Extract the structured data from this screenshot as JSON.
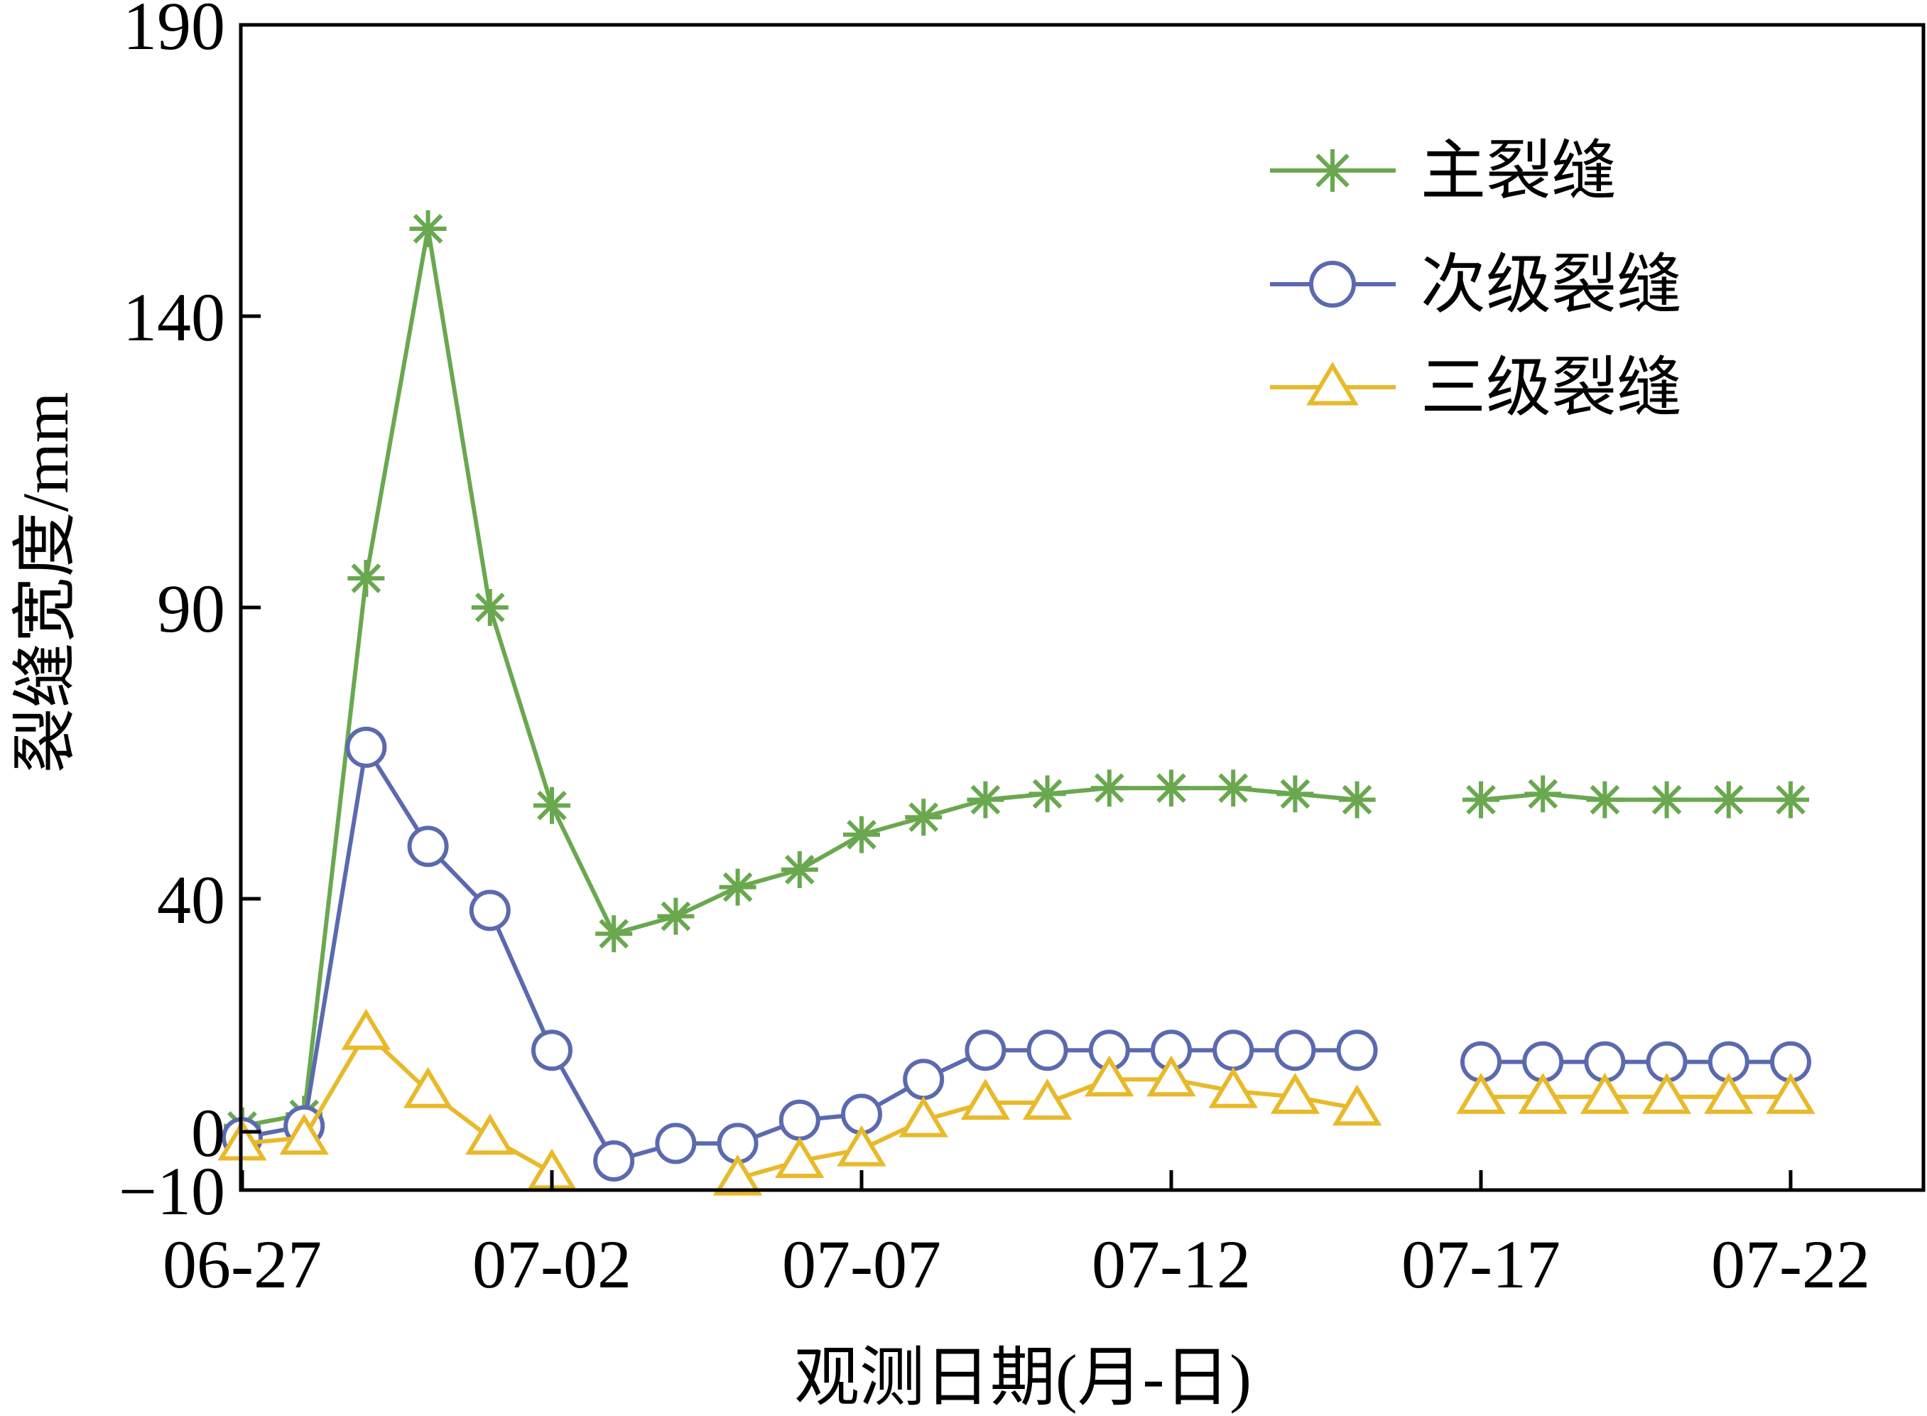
{
  "chart_data": {
    "type": "line",
    "title": "",
    "xlabel": "观测日期(月-日)",
    "ylabel": "裂缝宽度/mm",
    "x_ticks": [
      "06-27",
      "07-02",
      "07-07",
      "07-12",
      "07-17",
      "07-22"
    ],
    "y_ticks": [
      190,
      140,
      90,
      40,
      0,
      -10
    ],
    "y_tick_labels": [
      "190",
      "140",
      "90",
      "40",
      "0",
      "−10"
    ],
    "ylim": [
      -10,
      190
    ],
    "x": [
      "06-27",
      "06-28",
      "06-29",
      "06-30",
      "07-01",
      "07-02",
      "07-03",
      "07-04",
      "07-05",
      "07-06",
      "07-07",
      "07-08",
      "07-09",
      "07-10",
      "07-11",
      "07-12",
      "07-13",
      "07-14",
      "07-15",
      "07-16",
      "07-17",
      "07-18",
      "07-19",
      "07-20",
      "07-21",
      "07-22"
    ],
    "legend_position": "top-right",
    "grid": false,
    "series": [
      {
        "name": "主裂缝",
        "marker": "asterisk",
        "color": "#6aa84f",
        "values": [
          1,
          3,
          95,
          155,
          90,
          56,
          34,
          37,
          42,
          45,
          51,
          54,
          57,
          58,
          59,
          59,
          59,
          58,
          57,
          null,
          57,
          58,
          57,
          57,
          57,
          57
        ]
      },
      {
        "name": "次级裂缝",
        "marker": "circle",
        "color": "#5b6aae",
        "values": [
          -1,
          1,
          66,
          49,
          38,
          14,
          -5,
          -2,
          -2,
          2,
          3,
          9,
          14,
          14,
          14,
          14,
          14,
          14,
          14,
          null,
          12,
          12,
          12,
          12,
          12,
          12
        ]
      },
      {
        "name": "三级裂缝",
        "marker": "triangle",
        "color": "#e8b92a",
        "values": [
          -2,
          -1,
          17,
          7,
          -1,
          -7,
          null,
          null,
          -8,
          -5,
          -3,
          2,
          5,
          5,
          9,
          9,
          7,
          6,
          4,
          null,
          6,
          6,
          6,
          6,
          6,
          6
        ]
      }
    ]
  }
}
